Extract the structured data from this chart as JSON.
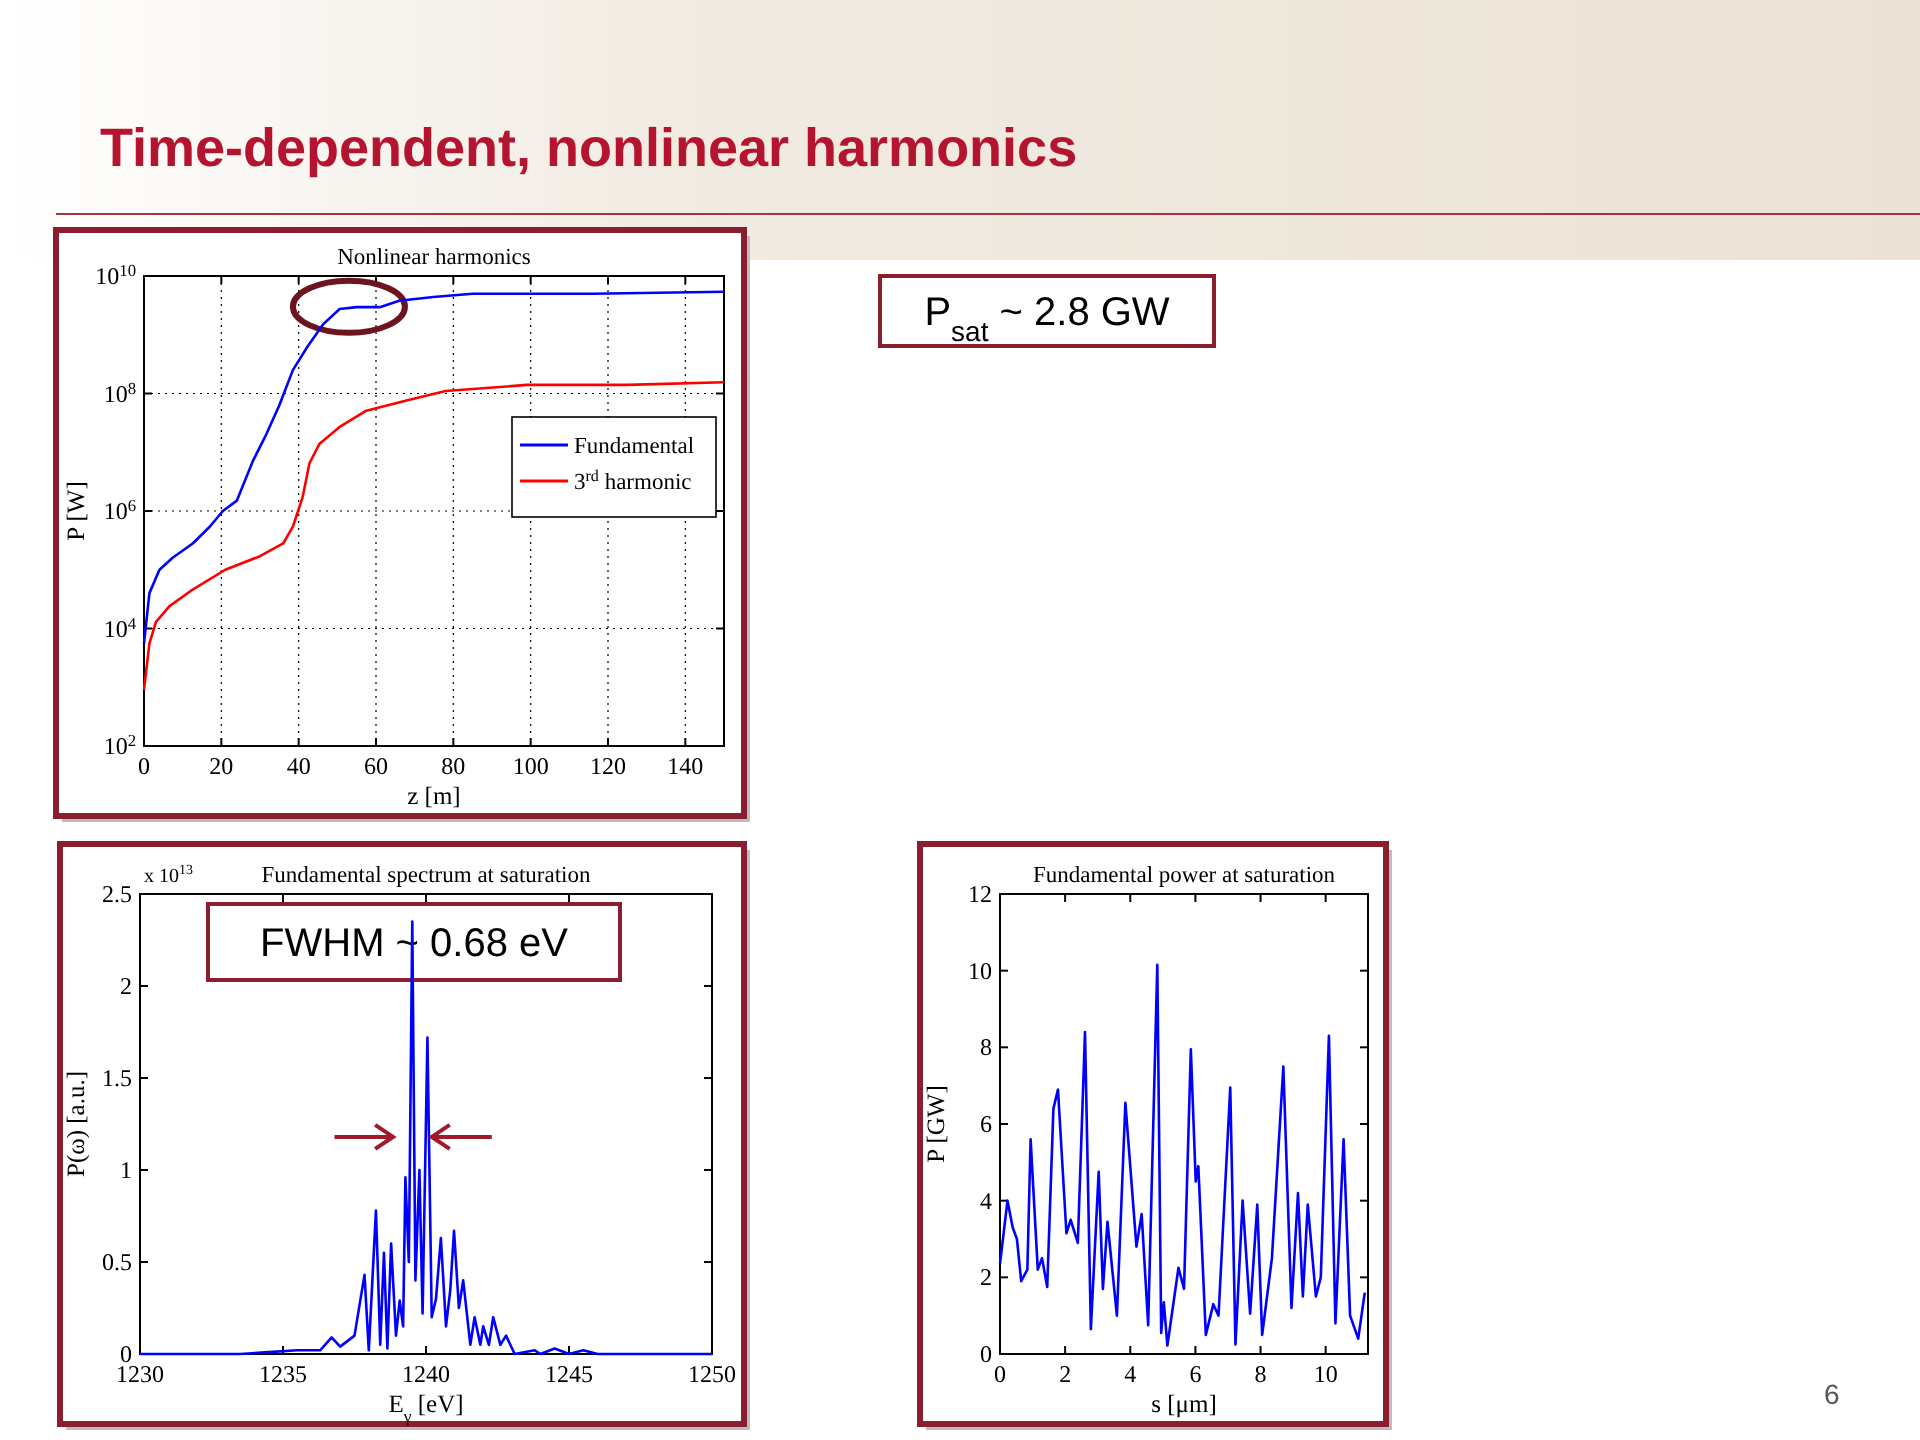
{
  "chart_data": [
    {
      "type": "line",
      "title": "Time-dependent, nonlinear harmonics",
      "subtitle": "Nonlinear harmonics",
      "xlabel": "z [m]",
      "ylabel": "P [W]",
      "log": true,
      "grid": true,
      "legend": "right",
      "xlim": [
        0,
        150
      ],
      "xticks": [
        0,
        20,
        40,
        60,
        80,
        100,
        120,
        140
      ],
      "ylim": [
        100,
        10000000000
      ],
      "yticks": [
        {
          "value": 100,
          "label": "10$^{2}$"
        },
        {
          "value": 10000,
          "label": "10$^{4}$"
        },
        {
          "value": 1000000,
          "label": "10$^{6}$"
        },
        {
          "value": 100000000,
          "label": "10$^{8}$"
        },
        {
          "value": 10000000000,
          "label": "10$^{10}$"
        }
      ],
      "annotations": [
        "P$_{sat}$ ~ 2.8 GW"
      ],
      "series": [
        {
          "name": "Fundamental",
          "color": "#0000ff",
          "x": [
            0,
            1.4,
            4,
            7.4,
            12.6,
            17,
            20.4,
            24,
            28.2,
            31.6,
            35,
            38.5,
            42.3,
            46.3,
            50.6,
            55,
            61,
            66,
            74.8,
            85,
            99,
            116,
            150
          ],
          "values": [
            5600,
            40000,
            100000,
            160000,
            280000,
            540000,
            1000000,
            1500000,
            7200000,
            20000000,
            63000000,
            250000000,
            630000000,
            1500000000,
            2750000000,
            2950000000,
            2950000000,
            3800000000,
            4400000000,
            5000000000,
            5000000000,
            5000000000,
            5400000000
          ]
        },
        {
          "name": "3$^{rd}$ harmonic",
          "color": "#ff0000",
          "x": [
            0,
            1.4,
            3.1,
            6.6,
            12.6,
            21,
            30,
            36,
            38.5,
            41,
            42.8,
            45.4,
            50.6,
            57.5,
            67.9,
            78,
            99,
            125,
            150
          ],
          "values": [
            900,
            5600,
            13000,
            24000,
            46000,
            100000,
            170000,
            280000,
            540000,
            1700000,
            6500000,
            14000000,
            27000000,
            51000000,
            76000000,
            110000000,
            140000000,
            140000000,
            155000000
          ]
        }
      ]
    },
    {
      "type": "line",
      "subtitle": "Fundamental spectrum at saturation",
      "xlabel": "E$_{γ}$ [eV]",
      "ylabel": "P(ω) [a.u.]",
      "xlim": [
        1230,
        1250
      ],
      "xticks": [
        1230,
        1235,
        1240,
        1245,
        1250
      ],
      "ylim": [
        0,
        2.5
      ],
      "yticks": [
        0,
        0.5,
        1,
        1.5,
        2,
        2.5
      ],
      "annotations": [
        "x 10$^{13}$",
        "FWHM ~ 0.68 eV"
      ],
      "series": [
        {
          "color": "#0000ff",
          "x": [
            1230,
            1233.5,
            1234.5,
            1235.5,
            1236.3,
            1236.7,
            1237,
            1237.5,
            1237.85,
            1238,
            1238.25,
            1238.4,
            1238.53,
            1238.65,
            1238.78,
            1238.95,
            1239.08,
            1239.2,
            1239.28,
            1239.4,
            1239.52,
            1239.63,
            1239.77,
            1239.88,
            1240.05,
            1240.2,
            1240.35,
            1240.52,
            1240.7,
            1240.85,
            1240.98,
            1241.15,
            1241.3,
            1241.55,
            1241.7,
            1241.9,
            1242,
            1242.2,
            1242.35,
            1242.6,
            1242.8,
            1243.1,
            1243.8,
            1244,
            1244.5,
            1245,
            1245.5,
            1246,
            1250
          ],
          "values": [
            0,
            0,
            0.01,
            0.02,
            0.02,
            0.09,
            0.04,
            0.1,
            0.43,
            0.02,
            0.78,
            0.05,
            0.55,
            0.03,
            0.6,
            0.1,
            0.29,
            0.15,
            0.96,
            0.5,
            2.35,
            0.4,
            1,
            0.22,
            1.72,
            0.2,
            0.3,
            0.63,
            0.15,
            0.35,
            0.67,
            0.25,
            0.4,
            0.05,
            0.2,
            0.05,
            0.15,
            0.05,
            0.2,
            0.05,
            0.1,
            0,
            0.02,
            0,
            0.03,
            0,
            0.02,
            0,
            0
          ]
        }
      ]
    },
    {
      "type": "line",
      "subtitle": "Fundamental power at saturation",
      "xlabel": "s [μm]",
      "ylabel": "P [GW]",
      "xlim": [
        0,
        11.3
      ],
      "xticks": [
        0,
        2,
        4,
        6,
        8,
        10
      ],
      "ylim": [
        0,
        12
      ],
      "yticks": [
        0,
        2,
        4,
        6,
        8,
        10,
        12
      ],
      "annotations": [
        "6"
      ],
      "series": [
        {
          "color": "#0000ff",
          "x": [
            0,
            0.23,
            0.39,
            0.52,
            0.65,
            0.84,
            0.94,
            1.16,
            1.29,
            1.45,
            1.64,
            1.78,
            2.04,
            2.17,
            2.39,
            2.61,
            2.79,
            3.03,
            3.16,
            3.3,
            3.59,
            3.85,
            4.19,
            4.35,
            4.55,
            4.83,
            4.95,
            5.03,
            5.14,
            5.48,
            5.65,
            5.86,
            6.01,
            6.09,
            6.32,
            6.55,
            6.71,
            7.07,
            7.23,
            7.45,
            7.68,
            7.9,
            8.05,
            8.35,
            8.7,
            8.95,
            9.15,
            9.3,
            9.45,
            9.7,
            9.85,
            10.1,
            10.3,
            10.55,
            10.75,
            11,
            11.2
          ],
          "values": [
            2.35,
            4,
            3.3,
            3,
            1.9,
            2.2,
            5.6,
            2.2,
            2.5,
            1.75,
            6.4,
            6.9,
            3.15,
            3.5,
            2.9,
            8.4,
            0.65,
            4.75,
            1.7,
            3.45,
            1,
            6.55,
            2.8,
            3.65,
            0.75,
            10.15,
            0.55,
            1.35,
            0.22,
            2.25,
            1.7,
            7.95,
            4.5,
            4.9,
            0.5,
            1.3,
            1,
            6.95,
            0.25,
            4,
            1.05,
            3.9,
            0.5,
            2.5,
            7.5,
            1.2,
            4.2,
            1.5,
            3.9,
            1.5,
            2,
            8.3,
            0.8,
            5.6,
            1,
            0.4,
            1.6
          ]
        }
      ]
    }
  ]
}
